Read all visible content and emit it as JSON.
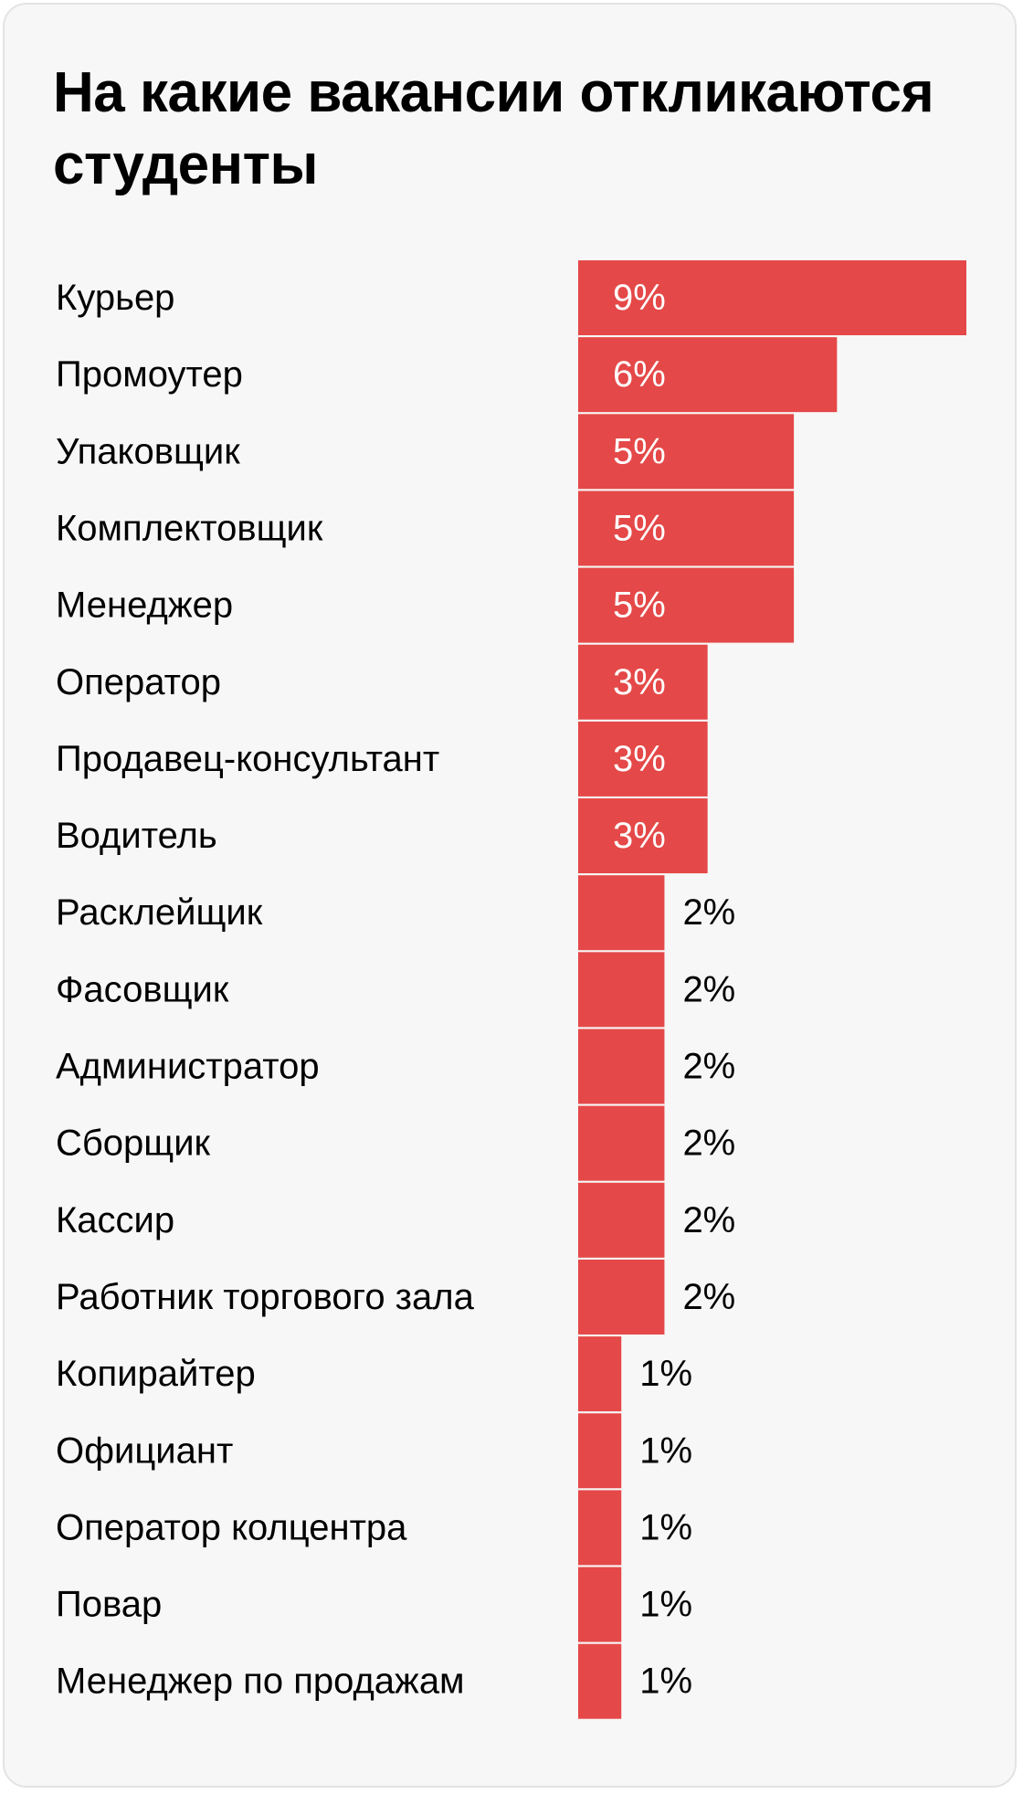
{
  "chart_data": {
    "type": "bar",
    "orientation": "horizontal",
    "title": "На какие вакансии откликаются студенты",
    "categories": [
      "Курьер",
      "Промоутер",
      "Упаковщик",
      "Комплектовщик",
      "Менеджер",
      "Оператор",
      "Продавец-консультант",
      "Водитель",
      "Расклейщик",
      "Фасовщик",
      "Администратор",
      "Сборщик",
      "Кассир",
      "Работник торгового зала",
      "Копирайтер",
      "Официант",
      "Оператор колцентра",
      "Повар",
      "Менеджер по продажам"
    ],
    "values": [
      9,
      6,
      5,
      5,
      5,
      3,
      3,
      3,
      2,
      2,
      2,
      2,
      2,
      2,
      1,
      1,
      1,
      1,
      1
    ],
    "value_labels": [
      "9%",
      "6%",
      "5%",
      "5%",
      "5%",
      "3%",
      "3%",
      "3%",
      "2%",
      "2%",
      "2%",
      "2%",
      "2%",
      "2%",
      "1%",
      "1%",
      "1%",
      "1%",
      "1%"
    ],
    "unit": "%",
    "xlim": [
      0,
      9
    ],
    "grid": false,
    "bar_color": "#e54848",
    "label_inside_color": "#ffffff",
    "label_outside_color": "#000000",
    "background_color": "#f7f7f7"
  }
}
